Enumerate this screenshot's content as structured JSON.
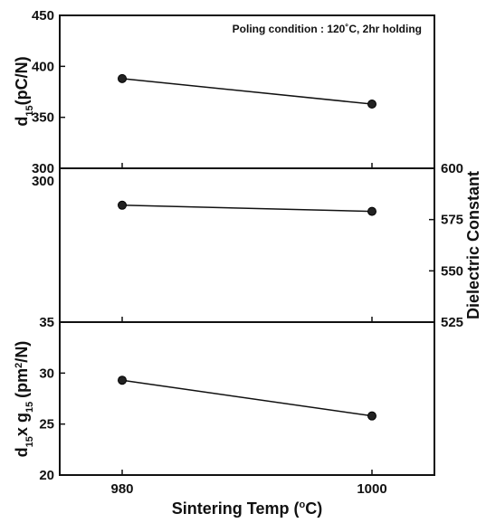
{
  "chart_data": [
    {
      "type": "line",
      "panel": "top",
      "annotation": "Poling condition : 120˚C, 2hr holding",
      "ylabel": {
        "main": "d",
        "sub": "15",
        "unit": "(pC/N)"
      },
      "ylim": [
        300,
        450
      ],
      "yticks": [
        "300",
        "350",
        "400",
        "450"
      ],
      "x": [
        980,
        1000
      ],
      "values": [
        388,
        363
      ]
    },
    {
      "type": "line",
      "panel": "middle",
      "ylabel_right": "Dielectric Constant",
      "ylim": [
        525,
        600
      ],
      "yticks_left": [
        "300"
      ],
      "yticks_right": [
        "525",
        "550",
        "575",
        "600"
      ],
      "x": [
        980,
        1000
      ],
      "values": [
        582,
        579
      ]
    },
    {
      "type": "line",
      "panel": "bottom",
      "ylabel": {
        "part1": "d",
        "sub1": "15",
        "part2": "x g",
        "sub2": "15",
        "unit_pre": "(pm",
        "unit_sup": "2",
        "unit_post": "/N)"
      },
      "ylim": [
        20,
        35
      ],
      "yticks": [
        "20",
        "25",
        "30",
        "35"
      ],
      "x": [
        980,
        1000
      ],
      "values": [
        29.3,
        25.8
      ]
    }
  ],
  "x_axis": {
    "label_pre": "Sintering Temp (",
    "label_deg": "o",
    "label_post": "C)",
    "xlim": [
      975,
      1005
    ],
    "ticks": [
      "980",
      "1000"
    ]
  }
}
